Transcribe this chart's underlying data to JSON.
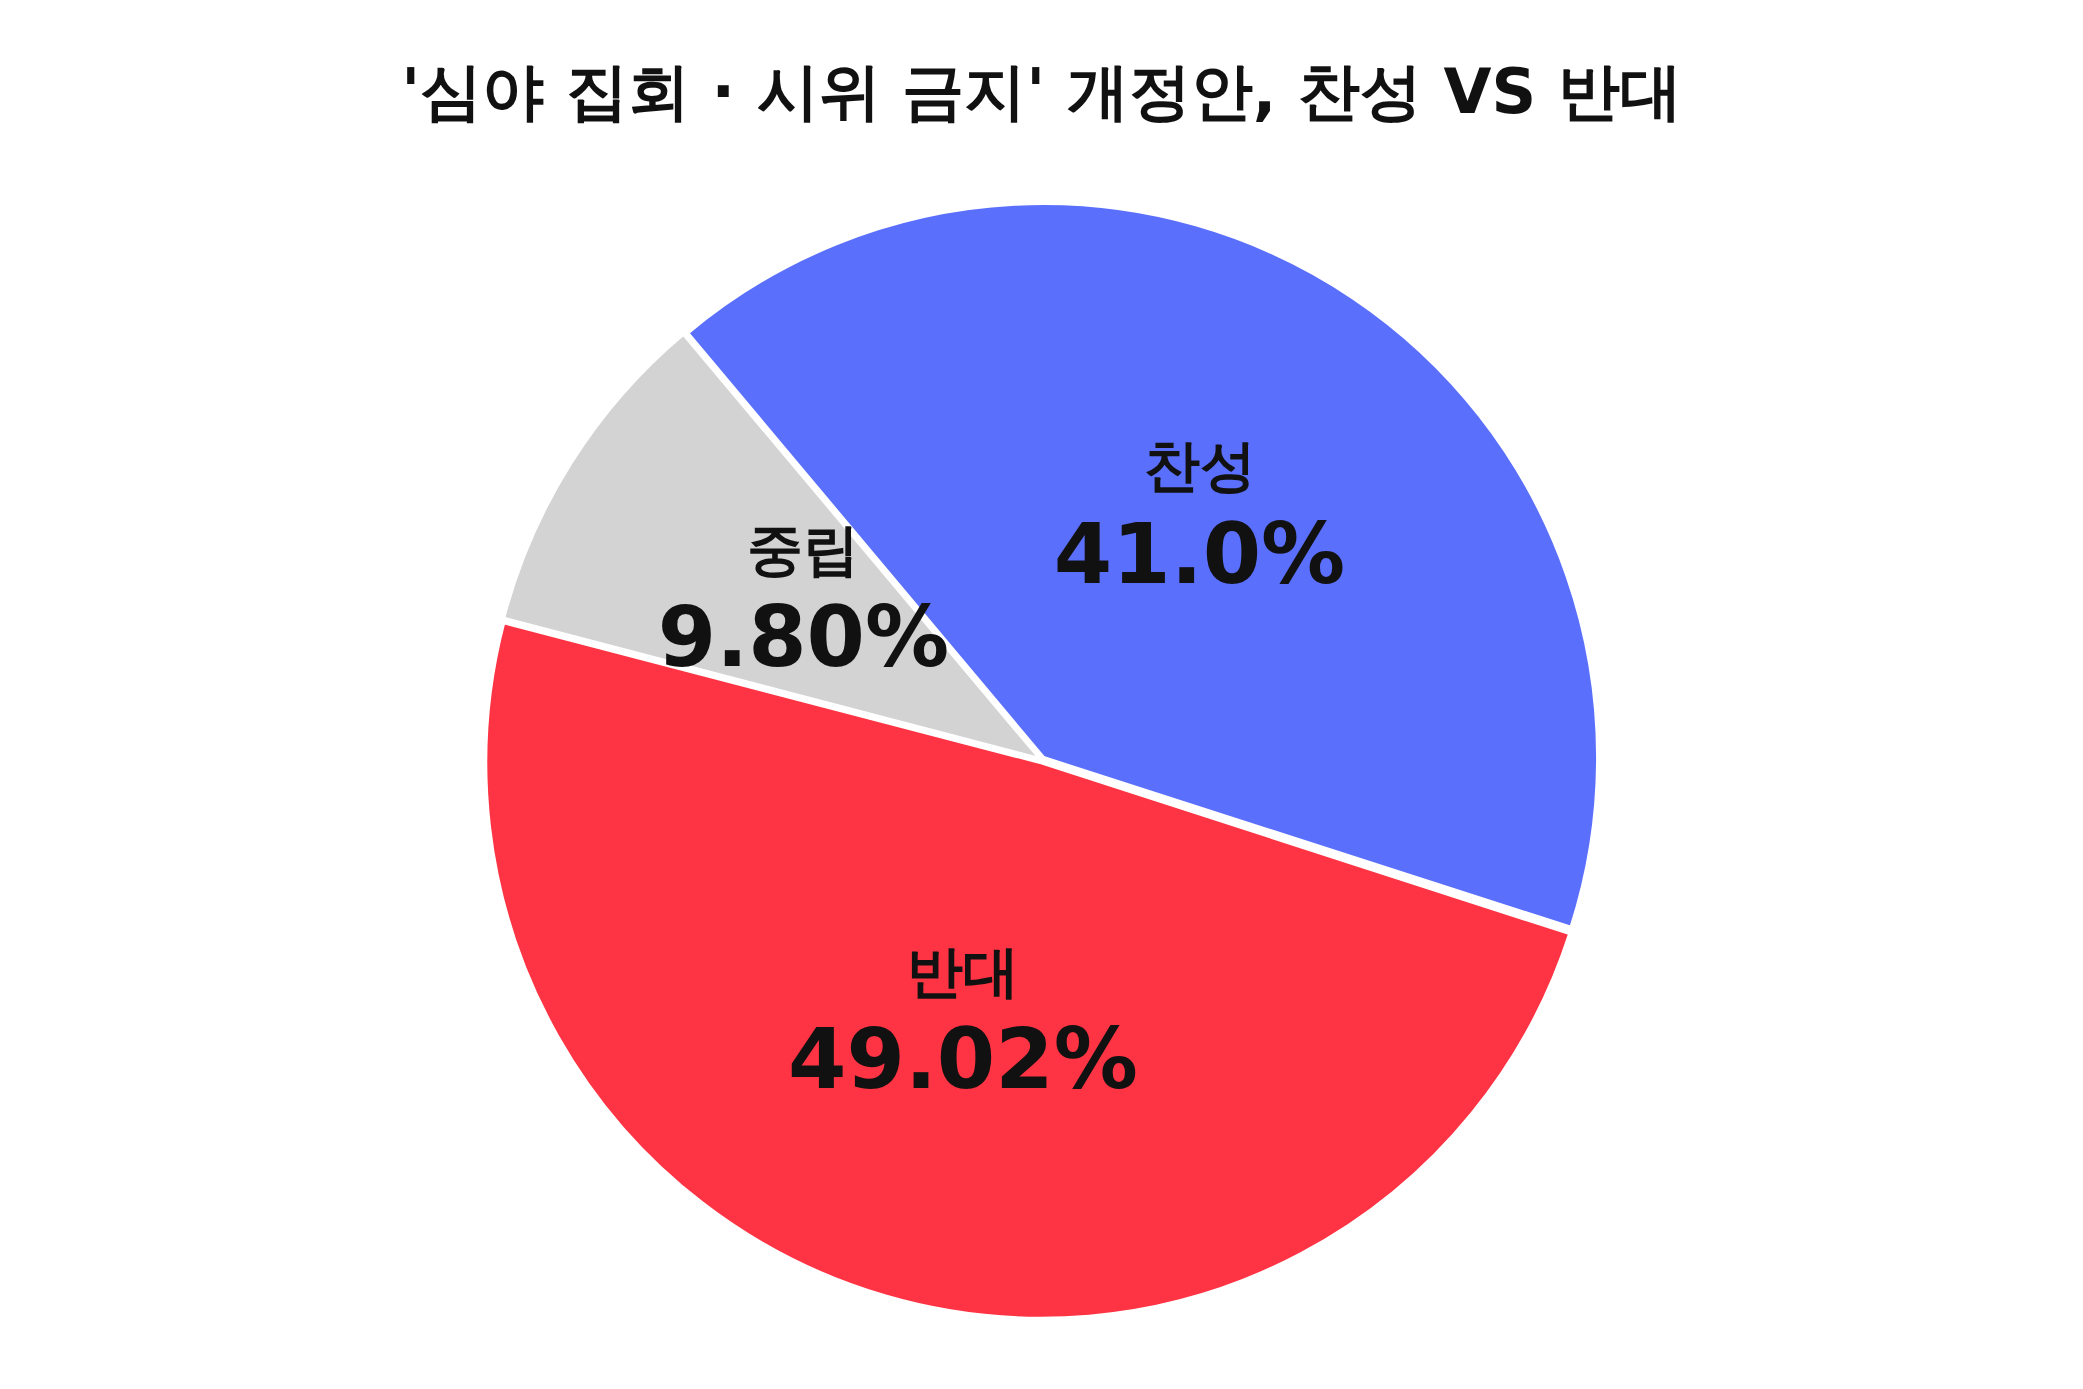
{
  "chart_data": {
    "type": "pie",
    "title": "'심야 집회 · 시위 금지' 개정안, 찬성 VS 반대",
    "categories": [
      "찬성",
      "반대",
      "중립"
    ],
    "values": [
      41.0,
      49.02,
      9.8
    ],
    "value_labels": [
      "41.0%",
      "49.02%",
      "9.80%"
    ],
    "colors": [
      "#5b6ffd",
      "#fe3343",
      "#d3d3d3"
    ]
  }
}
